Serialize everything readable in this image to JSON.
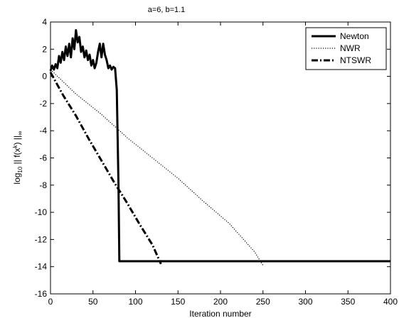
{
  "chart_data": {
    "type": "line",
    "title": "a=6, b=1.1",
    "xlabel": "Iteration number",
    "ylabel": "log10 || f(x^k) ||∞",
    "xlim": [
      0,
      400
    ],
    "ylim": [
      -16,
      4
    ],
    "xticks": [
      0,
      50,
      100,
      150,
      200,
      250,
      300,
      350,
      400
    ],
    "yticks": [
      4,
      2,
      0,
      -2,
      -4,
      -6,
      -8,
      -10,
      -12,
      -14,
      -16
    ],
    "grid": false,
    "legend_position": "top-right",
    "series": [
      {
        "name": "Newton",
        "style": "solid-thick",
        "points": [
          [
            0,
            0.4
          ],
          [
            2,
            0.8
          ],
          [
            4,
            0.5
          ],
          [
            6,
            0.9
          ],
          [
            8,
            0.6
          ],
          [
            10,
            1.5
          ],
          [
            12,
            1.0
          ],
          [
            14,
            1.8
          ],
          [
            16,
            1.2
          ],
          [
            18,
            2.2
          ],
          [
            20,
            1.5
          ],
          [
            22,
            2.4
          ],
          [
            24,
            1.4
          ],
          [
            26,
            2.8
          ],
          [
            28,
            2.0
          ],
          [
            30,
            3.4
          ],
          [
            32,
            2.5
          ],
          [
            34,
            2.9
          ],
          [
            36,
            1.8
          ],
          [
            38,
            2.2
          ],
          [
            40,
            1.4
          ],
          [
            42,
            1.9
          ],
          [
            44,
            1.2
          ],
          [
            46,
            1.6
          ],
          [
            48,
            0.8
          ],
          [
            50,
            1.2
          ],
          [
            52,
            0.6
          ],
          [
            54,
            1.0
          ],
          [
            56,
            1.8
          ],
          [
            58,
            2.4
          ],
          [
            60,
            1.4
          ],
          [
            62,
            2.4
          ],
          [
            64,
            1.6
          ],
          [
            66,
            1.2
          ],
          [
            68,
            0.6
          ],
          [
            70,
            0.8
          ],
          [
            72,
            0.5
          ],
          [
            74,
            0.7
          ],
          [
            76,
            0.6
          ],
          [
            78,
            -1.0
          ],
          [
            80,
            -8.0
          ],
          [
            81,
            -13.6
          ],
          [
            400,
            -13.6
          ]
        ]
      },
      {
        "name": "NWR",
        "style": "dotted",
        "points": [
          [
            0,
            0.5
          ],
          [
            30,
            -1.3
          ],
          [
            60,
            -2.8
          ],
          [
            90,
            -4.5
          ],
          [
            120,
            -6.0
          ],
          [
            150,
            -7.5
          ],
          [
            180,
            -9.2
          ],
          [
            210,
            -10.8
          ],
          [
            240,
            -12.9
          ],
          [
            250,
            -13.9
          ]
        ]
      },
      {
        "name": "NTSWR",
        "style": "dashdot-thick",
        "points": [
          [
            0,
            0.3
          ],
          [
            15,
            -1.4
          ],
          [
            30,
            -2.9
          ],
          [
            45,
            -4.6
          ],
          [
            60,
            -6.2
          ],
          [
            75,
            -7.8
          ],
          [
            90,
            -9.3
          ],
          [
            105,
            -10.9
          ],
          [
            120,
            -12.4
          ],
          [
            130,
            -13.8
          ]
        ]
      }
    ]
  }
}
